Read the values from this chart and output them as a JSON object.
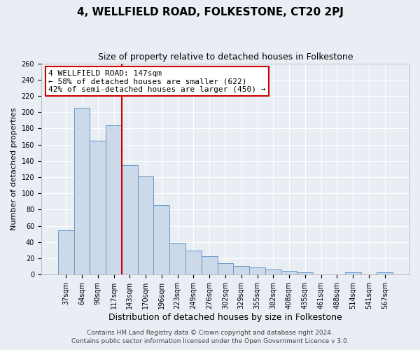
{
  "title": "4, WELLFIELD ROAD, FOLKESTONE, CT20 2PJ",
  "subtitle": "Size of property relative to detached houses in Folkestone",
  "xlabel": "Distribution of detached houses by size in Folkestone",
  "ylabel": "Number of detached properties",
  "bar_labels": [
    "37sqm",
    "64sqm",
    "90sqm",
    "117sqm",
    "143sqm",
    "170sqm",
    "196sqm",
    "223sqm",
    "249sqm",
    "276sqm",
    "302sqm",
    "329sqm",
    "355sqm",
    "382sqm",
    "408sqm",
    "435sqm",
    "461sqm",
    "488sqm",
    "514sqm",
    "541sqm",
    "567sqm"
  ],
  "bar_values": [
    55,
    205,
    165,
    184,
    135,
    121,
    86,
    39,
    30,
    23,
    14,
    11,
    9,
    6,
    5,
    3,
    0,
    0,
    3,
    0,
    3
  ],
  "bar_color": "#ccd9e8",
  "bar_edge_color": "#6699cc",
  "vline_color": "#cc0000",
  "annotation_title": "4 WELLFIELD ROAD: 147sqm",
  "annotation_line1": "← 58% of detached houses are smaller (622)",
  "annotation_line2": "42% of semi-detached houses are larger (450) →",
  "annotation_box_color": "#ffffff",
  "annotation_box_edge_color": "#cc0000",
  "ylim": [
    0,
    260
  ],
  "yticks": [
    0,
    20,
    40,
    60,
    80,
    100,
    120,
    140,
    160,
    180,
    200,
    220,
    240,
    260
  ],
  "footer1": "Contains HM Land Registry data © Crown copyright and database right 2024.",
  "footer2": "Contains public sector information licensed under the Open Government Licence v 3.0.",
  "plot_bg_color": "#e8eef4",
  "fig_bg_color": "#e8eef4",
  "grid_color": "#ffffff",
  "title_fontsize": 11,
  "subtitle_fontsize": 9,
  "xlabel_fontsize": 9,
  "ylabel_fontsize": 8,
  "tick_fontsize": 7,
  "annot_fontsize": 8,
  "footer_fontsize": 6.5
}
